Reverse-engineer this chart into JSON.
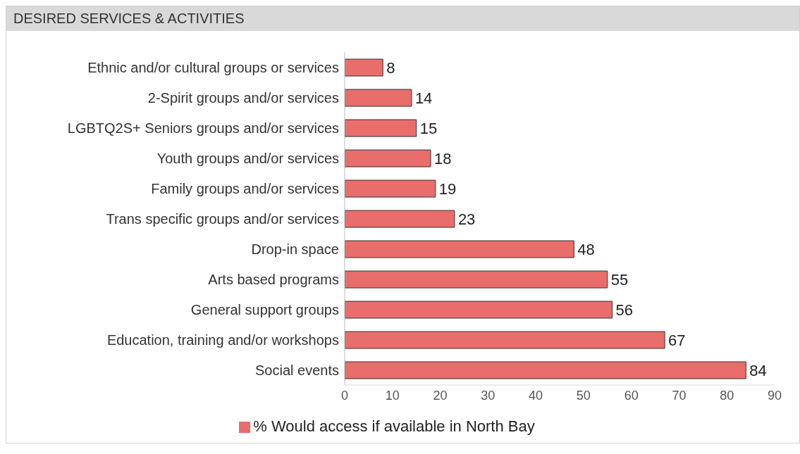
{
  "chart_data": {
    "type": "bar",
    "orientation": "horizontal",
    "title": "DESIRED SERVICES & ACTIVITIES",
    "categories": [
      "Ethnic and/or cultural groups or services",
      "2-Spirit groups and/or services",
      "LGBTQ2S+ Seniors groups and/or services",
      "Youth groups and/or services",
      "Family groups and/or services",
      "Trans specific groups and/or services",
      "Drop-in space",
      "Arts based programs",
      "General support groups",
      "Education, training and/or workshops",
      "Social events"
    ],
    "series": [
      {
        "name": "% Would access if available in North Bay",
        "color": "#e96d6b",
        "values": [
          8,
          14,
          15,
          18,
          19,
          23,
          48,
          55,
          56,
          67,
          84
        ]
      }
    ],
    "xlim": [
      0,
      90
    ],
    "xticks": [
      0,
      10,
      20,
      30,
      40,
      50,
      60,
      70,
      80,
      90
    ],
    "data_labels": true,
    "legend": "bottom",
    "grid": false
  }
}
